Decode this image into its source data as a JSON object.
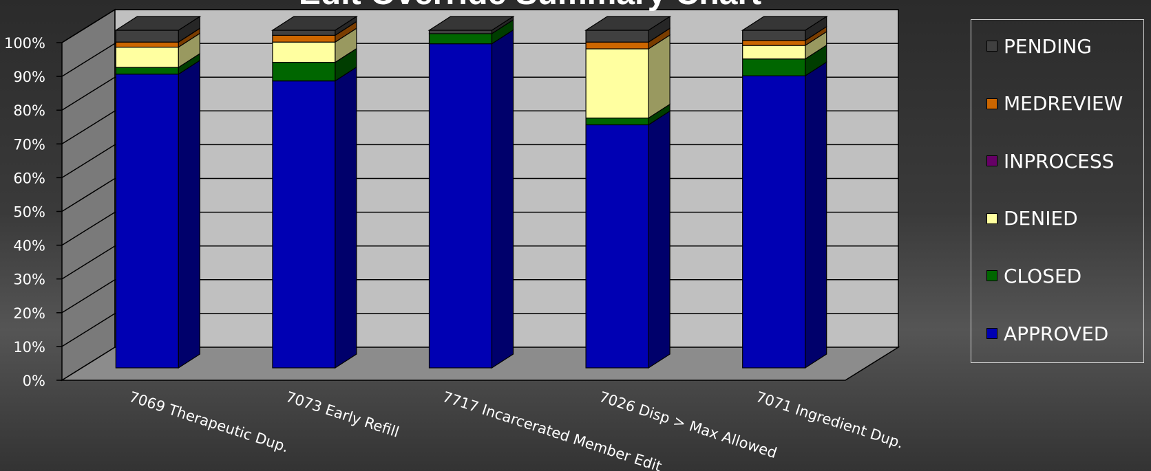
{
  "chart_data": {
    "type": "bar",
    "stacked": true,
    "title": "Edit Override Summary Chart",
    "xlabel": "",
    "ylabel": "",
    "ylim": [
      0,
      100
    ],
    "ytick_labels": [
      "0%",
      "10%",
      "20%",
      "30%",
      "40%",
      "50%",
      "60%",
      "70%",
      "80%",
      "90%",
      "100%"
    ],
    "categories": [
      "7069 Therapeutic Dup.",
      "7073  Early Refill",
      "7717  Incarcerated Member Edit",
      "7026  Disp > Max Allowed",
      "7071  Ingredient Dup."
    ],
    "series": [
      {
        "name": "APPROVED",
        "color": "#0000b3",
        "values": [
          87,
          85,
          96,
          72,
          86.5
        ]
      },
      {
        "name": "CLOSED",
        "color": "#006600",
        "values": [
          2,
          5.5,
          3,
          2,
          5
        ]
      },
      {
        "name": "DENIED",
        "color": "#ffffa0",
        "values": [
          6,
          6,
          0,
          20.5,
          4
        ]
      },
      {
        "name": "INPROCESS",
        "color": "#660066",
        "values": [
          0,
          0,
          0,
          0,
          0
        ]
      },
      {
        "name": "MEDREVIEW",
        "color": "#cc6600",
        "values": [
          1.5,
          2,
          0,
          2,
          1.5
        ]
      },
      {
        "name": "PENDING",
        "color": "#404040",
        "values": [
          3.5,
          1.5,
          1,
          3.5,
          3
        ]
      }
    ],
    "legend": {
      "position": "right",
      "order": [
        "PENDING",
        "MEDREVIEW",
        "INPROCESS",
        "DENIED",
        "CLOSED",
        "APPROVED"
      ]
    },
    "grid": true
  }
}
